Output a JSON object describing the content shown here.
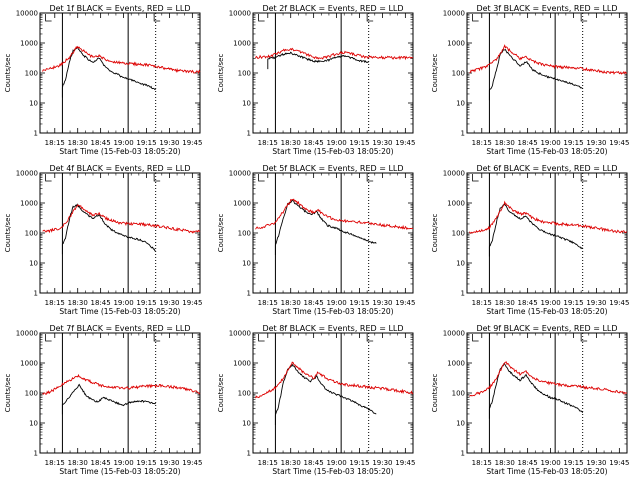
{
  "chart_data": {
    "type": "line",
    "layout": "3x3 grid",
    "yscale": "log",
    "ylim": [
      1,
      10000
    ],
    "ytick_labels": [
      "1",
      "10",
      "100",
      "1000",
      "10000"
    ],
    "ylabel": "Counts/sec",
    "xlabel": "Start Time (15-Feb-03 18:05:20)",
    "xlim": [
      "18:05:20",
      "19:50:00"
    ],
    "xtick_labels": [
      "18:15",
      "18:30",
      "18:45",
      "19:00",
      "19:15",
      "19:30",
      "19:45"
    ],
    "xtick_minutes": [
      15,
      30,
      45,
      60,
      75,
      90,
      105
    ],
    "series_colors": {
      "events": "#000000",
      "lld": "#dd0000"
    },
    "panels": [
      {
        "title": "Det 1f BLACK = Events, RED = LLD",
        "vlines_solid": [
          "18:20",
          "19:03"
        ],
        "vlines_dotted": [
          "19:21"
        ],
        "markers": [
          "18:09",
          "19:20"
        ],
        "series": [
          {
            "key": "events",
            "x": [
              "18:20",
              "18:22",
              "18:25",
              "18:27",
              "18:30",
              "18:33",
              "18:37",
              "18:40",
              "18:44",
              "18:48",
              "18:52",
              "18:56",
              "19:00",
              "19:05",
              "19:10",
              "19:16",
              "19:21"
            ],
            "y": [
              35,
              60,
              280,
              550,
              700,
              420,
              280,
              220,
              320,
              160,
              110,
              90,
              70,
              60,
              45,
              38,
              28
            ]
          },
          {
            "key": "lld",
            "x": [
              "18:07",
              "18:12",
              "18:17",
              "18:20",
              "18:25",
              "18:30",
              "18:35",
              "18:40",
              "18:44",
              "18:48",
              "18:55",
              "19:00",
              "19:05",
              "19:15",
              "19:25",
              "19:35",
              "19:45",
              "19:50"
            ],
            "y": [
              120,
              140,
              170,
              200,
              350,
              800,
              480,
              330,
              380,
              280,
              230,
              210,
              200,
              190,
              150,
              120,
              110,
              110
            ]
          }
        ]
      },
      {
        "title": "Det 2f BLACK = Events, RED = LLD",
        "vlines_solid": [
          "18:20",
          "19:03"
        ],
        "vlines_dotted": [
          "19:21"
        ],
        "markers": [
          "18:09",
          "19:20"
        ],
        "series": [
          {
            "key": "events",
            "x": [
              "18:15",
              "18:20",
              "18:25",
              "18:30",
              "18:35",
              "18:40",
              "18:45",
              "18:50",
              "18:55",
              "19:00",
              "19:05",
              "19:10",
              "19:15",
              "19:21"
            ],
            "y": [
              300,
              330,
              420,
              460,
              380,
              300,
              250,
              240,
              270,
              340,
              370,
              320,
              260,
              230
            ]
          },
          {
            "key": "lld",
            "x": [
              "18:07",
              "18:15",
              "18:20",
              "18:25",
              "18:30",
              "18:35",
              "18:40",
              "18:45",
              "18:50",
              "18:55",
              "19:00",
              "19:05",
              "19:10",
              "19:15",
              "19:20",
              "19:30",
              "19:40",
              "19:50"
            ],
            "y": [
              330,
              360,
              420,
              560,
              620,
              540,
              420,
              340,
              320,
              350,
              440,
              480,
              440,
              380,
              340,
              330,
              320,
              320
            ]
          }
        ]
      },
      {
        "title": "Det 3f BLACK = Events, RED = LLD",
        "vlines_solid": [
          "18:20",
          "19:03"
        ],
        "vlines_dotted": [
          "19:21"
        ],
        "markers": [
          "18:09",
          "19:20"
        ],
        "series": [
          {
            "key": "events",
            "x": [
              "18:20",
              "18:22",
              "18:25",
              "18:27",
              "18:30",
              "18:33",
              "18:37",
              "18:40",
              "18:44",
              "18:48",
              "18:52",
              "18:56",
              "19:00",
              "19:05",
              "19:10",
              "19:16",
              "19:21"
            ],
            "y": [
              25,
              40,
              150,
              430,
              620,
              400,
              250,
              170,
              240,
              130,
              100,
              80,
              70,
              60,
              50,
              40,
              30
            ]
          },
          {
            "key": "lld",
            "x": [
              "18:07",
              "18:12",
              "18:17",
              "18:20",
              "18:25",
              "18:30",
              "18:35",
              "18:40",
              "18:44",
              "18:48",
              "18:55",
              "19:00",
              "19:05",
              "19:15",
              "19:25",
              "19:35",
              "19:45",
              "19:50"
            ],
            "y": [
              110,
              130,
              160,
              190,
              300,
              760,
              480,
              300,
              360,
              250,
              190,
              170,
              160,
              150,
              130,
              110,
              100,
              100
            ]
          }
        ]
      },
      {
        "title": "Det 4f BLACK = Events, RED = LLD",
        "vlines_solid": [
          "18:20",
          "19:03"
        ],
        "vlines_dotted": [
          "19:21"
        ],
        "markers": [
          "18:09",
          "19:20"
        ],
        "series": [
          {
            "key": "events",
            "x": [
              "18:20",
              "18:22",
              "18:25",
              "18:27",
              "18:30",
              "18:33",
              "18:37",
              "18:40",
              "18:44",
              "18:48",
              "18:52",
              "18:56",
              "19:00",
              "19:05",
              "19:10",
              "19:16",
              "19:21"
            ],
            "y": [
              40,
              70,
              350,
              750,
              850,
              550,
              380,
              300,
              400,
              200,
              130,
              100,
              80,
              70,
              60,
              45,
              25
            ]
          },
          {
            "key": "lld",
            "x": [
              "18:07",
              "18:12",
              "18:17",
              "18:20",
              "18:25",
              "18:30",
              "18:35",
              "18:40",
              "18:44",
              "18:48",
              "18:55",
              "19:00",
              "19:05",
              "19:15",
              "19:25",
              "19:35",
              "19:45",
              "19:50"
            ],
            "y": [
              110,
              120,
              140,
              160,
              350,
              900,
              560,
              400,
              460,
              320,
              230,
              210,
              200,
              190,
              160,
              130,
              110,
              110
            ]
          }
        ]
      },
      {
        "title": "Det 5f BLACK = Events, RED = LLD",
        "vlines_solid": [
          "18:20",
          "19:03"
        ],
        "vlines_dotted": [
          "19:21"
        ],
        "markers": [
          "18:09",
          "19:20"
        ],
        "series": [
          {
            "key": "events",
            "x": [
              "18:20",
              "18:22",
              "18:25",
              "18:28",
              "18:31",
              "18:35",
              "18:39",
              "18:43",
              "18:47",
              "18:50",
              "18:54",
              "19:00",
              "19:05",
              "19:10",
              "19:15",
              "19:20",
              "19:26"
            ],
            "y": [
              40,
              80,
              300,
              900,
              1200,
              800,
              550,
              420,
              500,
              300,
              180,
              140,
              110,
              90,
              70,
              55,
              45
            ]
          },
          {
            "key": "lld",
            "x": [
              "18:07",
              "18:12",
              "18:17",
              "18:20",
              "18:25",
              "18:31",
              "18:36",
              "18:40",
              "18:45",
              "18:48",
              "18:55",
              "19:00",
              "19:05",
              "19:15",
              "19:25",
              "19:35",
              "19:45",
              "19:50"
            ],
            "y": [
              140,
              160,
              190,
              220,
              500,
              1400,
              900,
              600,
              480,
              560,
              330,
              280,
              250,
              230,
              200,
              170,
              150,
              140
            ]
          }
        ]
      },
      {
        "title": "Det 6f BLACK = Events, RED = LLD",
        "vlines_solid": [
          "18:20",
          "19:03"
        ],
        "vlines_dotted": [
          "19:21"
        ],
        "markers": [
          "18:09",
          "19:20"
        ],
        "series": [
          {
            "key": "events",
            "x": [
              "18:20",
              "18:22",
              "18:25",
              "18:27",
              "18:30",
              "18:33",
              "18:37",
              "18:40",
              "18:44",
              "18:48",
              "18:52",
              "18:56",
              "19:00",
              "19:05",
              "19:10",
              "19:16",
              "19:21"
            ],
            "y": [
              35,
              60,
              280,
              650,
              900,
              520,
              380,
              300,
              360,
              200,
              140,
              110,
              90,
              75,
              60,
              45,
              30
            ]
          },
          {
            "key": "lld",
            "x": [
              "18:07",
              "18:12",
              "18:17",
              "18:20",
              "18:25",
              "18:30",
              "18:35",
              "18:40",
              "18:44",
              "18:48",
              "18:55",
              "19:00",
              "19:05",
              "19:15",
              "19:25",
              "19:35",
              "19:45",
              "19:50"
            ],
            "y": [
              100,
              110,
              130,
              150,
              350,
              1000,
              600,
              420,
              480,
              320,
              240,
              220,
              200,
              190,
              160,
              130,
              110,
              110
            ]
          }
        ]
      },
      {
        "title": "Det 7f BLACK = Events, RED = LLD",
        "vlines_solid": [
          "18:20",
          "19:03"
        ],
        "vlines_dotted": [
          "19:21"
        ],
        "markers": [
          "18:09",
          "19:20"
        ],
        "series": [
          {
            "key": "events",
            "x": [
              "18:20",
              "18:22",
              "18:25",
              "18:28",
              "18:31",
              "18:35",
              "18:39",
              "18:43",
              "18:47",
              "18:52",
              "18:56",
              "19:00",
              "19:05",
              "19:10",
              "19:16",
              "19:21"
            ],
            "y": [
              40,
              50,
              80,
              120,
              180,
              90,
              60,
              50,
              70,
              55,
              45,
              40,
              50,
              55,
              50,
              45
            ]
          },
          {
            "key": "lld",
            "x": [
              "18:07",
              "18:12",
              "18:17",
              "18:20",
              "18:25",
              "18:30",
              "18:35",
              "18:40",
              "18:45",
              "18:50",
              "18:55",
              "19:00",
              "19:05",
              "19:15",
              "19:25",
              "19:35",
              "19:45",
              "19:50"
            ],
            "y": [
              90,
              110,
              150,
              200,
              260,
              380,
              280,
              220,
              180,
              160,
              150,
              140,
              150,
              170,
              180,
              150,
              120,
              100
            ]
          }
        ]
      },
      {
        "title": "Det 8f BLACK = Events, RED = LLD",
        "vlines_solid": [
          "18:20",
          "19:03"
        ],
        "vlines_dotted": [
          "19:21"
        ],
        "markers": [
          "18:09",
          "19:20"
        ],
        "series": [
          {
            "key": "events",
            "x": [
              "18:20",
              "18:22",
              "18:25",
              "18:28",
              "18:31",
              "18:35",
              "18:39",
              "18:43",
              "18:47",
              "18:50",
              "18:54",
              "19:00",
              "19:05",
              "19:10",
              "19:15",
              "19:20",
              "19:26"
            ],
            "y": [
              18,
              35,
              200,
              600,
              900,
              500,
              320,
              250,
              360,
              200,
              120,
              90,
              70,
              55,
              40,
              30,
              20
            ]
          },
          {
            "key": "lld",
            "x": [
              "18:07",
              "18:12",
              "18:17",
              "18:20",
              "18:25",
              "18:31",
              "18:36",
              "18:40",
              "18:45",
              "18:48",
              "18:55",
              "19:00",
              "19:05",
              "19:15",
              "19:25",
              "19:35",
              "19:45",
              "19:50"
            ],
            "y": [
              70,
              90,
              120,
              150,
              300,
              1000,
              620,
              400,
              320,
              480,
              280,
              220,
              190,
              170,
              150,
              130,
              110,
              100
            ]
          }
        ]
      },
      {
        "title": "Det 9f BLACK = Events, RED = LLD",
        "vlines_solid": [
          "18:20",
          "19:03"
        ],
        "vlines_dotted": [
          "19:21"
        ],
        "markers": [
          "18:09",
          "19:20"
        ],
        "series": [
          {
            "key": "events",
            "x": [
              "18:20",
              "18:22",
              "18:25",
              "18:27",
              "18:30",
              "18:33",
              "18:37",
              "18:40",
              "18:44",
              "18:48",
              "18:52",
              "18:56",
              "19:00",
              "19:05",
              "19:10",
              "19:16",
              "19:21"
            ],
            "y": [
              30,
              55,
              260,
              650,
              950,
              520,
              350,
              270,
              400,
              200,
              120,
              90,
              70,
              60,
              45,
              35,
              22
            ]
          },
          {
            "key": "lld",
            "x": [
              "18:07",
              "18:12",
              "18:17",
              "18:20",
              "18:25",
              "18:30",
              "18:35",
              "18:40",
              "18:44",
              "18:48",
              "18:55",
              "19:00",
              "19:05",
              "19:15",
              "19:25",
              "19:35",
              "19:45",
              "19:50"
            ],
            "y": [
              80,
              95,
              120,
              150,
              320,
              1100,
              650,
              420,
              520,
              330,
              240,
              210,
              190,
              170,
              150,
              130,
              110,
              100
            ]
          }
        ]
      }
    ]
  }
}
